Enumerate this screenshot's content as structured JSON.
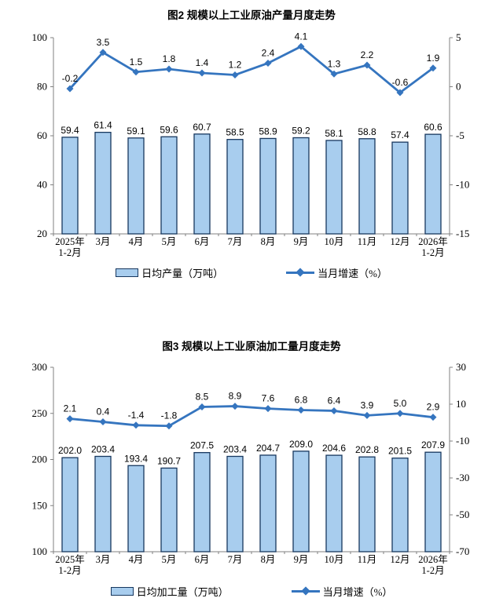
{
  "colors": {
    "bar_fill": "#A8CDEE",
    "bar_border": "#17375E",
    "line": "#3575BF",
    "axis": "#808080",
    "text": "#000000"
  },
  "chart_data": [
    {
      "type": "bar+line",
      "title": "图2 规模以上工业原油产量月度走势",
      "categories": [
        "2025年\n1-2月",
        "3月",
        "4月",
        "5月",
        "6月",
        "7月",
        "8月",
        "9月",
        "10月",
        "11月",
        "12月",
        "2026年\n1-2月"
      ],
      "series": [
        {
          "name": "日均产量（万吨）",
          "type": "bar",
          "axis": "left",
          "values": [
            59.4,
            61.4,
            59.1,
            59.6,
            60.7,
            58.5,
            58.9,
            59.2,
            58.1,
            58.8,
            57.4,
            60.6
          ]
        },
        {
          "name": "当月增速（%）",
          "type": "line",
          "axis": "right",
          "values": [
            -0.2,
            3.5,
            1.5,
            1.8,
            1.4,
            1.2,
            2.4,
            4.1,
            1.3,
            2.2,
            -0.6,
            1.9
          ]
        }
      ],
      "left_axis": {
        "min": 20,
        "max": 100,
        "ticks": [
          20,
          40,
          60,
          80,
          100
        ]
      },
      "right_axis": {
        "min": -15,
        "max": 5,
        "ticks": [
          -15,
          -10,
          -5,
          0,
          5
        ]
      },
      "grid": false,
      "legend_position": "bottom"
    },
    {
      "type": "bar+line",
      "title": "图3 规模以上工业原油加工量月度走势",
      "categories": [
        "2025年\n1-2月",
        "3月",
        "4月",
        "5月",
        "6月",
        "7月",
        "8月",
        "9月",
        "10月",
        "11月",
        "12月",
        "2026年\n1-2月"
      ],
      "series": [
        {
          "name": "日均加工量（万吨）",
          "type": "bar",
          "axis": "left",
          "values": [
            202.0,
            203.4,
            193.4,
            190.7,
            207.5,
            203.4,
            204.7,
            209.0,
            204.6,
            202.8,
            201.5,
            207.9
          ]
        },
        {
          "name": "当月增速（%）",
          "type": "line",
          "axis": "right",
          "values": [
            2.1,
            0.4,
            -1.4,
            -1.8,
            8.5,
            8.9,
            7.6,
            6.8,
            6.4,
            3.9,
            5.0,
            2.9
          ]
        }
      ],
      "left_axis": {
        "min": 100,
        "max": 300,
        "ticks": [
          100,
          150,
          200,
          250,
          300
        ]
      },
      "right_axis": {
        "min": -70,
        "max": 30,
        "ticks": [
          -70,
          -50,
          -30,
          -10,
          10,
          30
        ]
      },
      "grid": false,
      "legend_position": "bottom"
    }
  ]
}
